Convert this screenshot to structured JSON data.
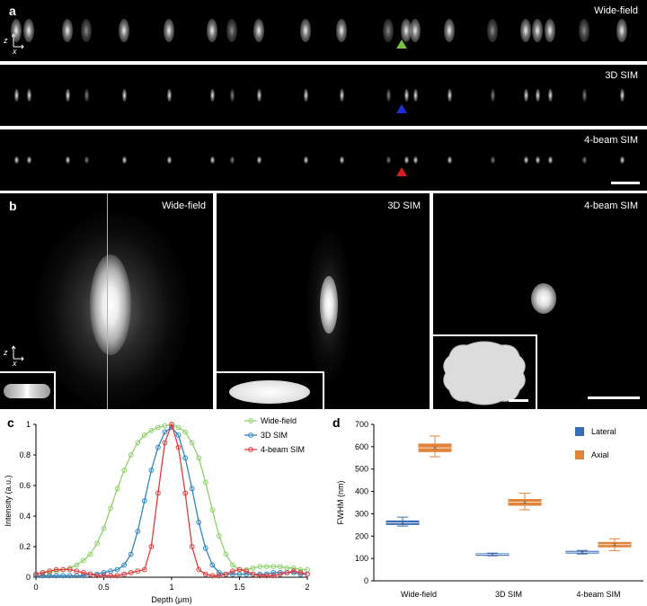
{
  "panel_a": {
    "letter": "a",
    "rows": [
      {
        "label": "Wide-field",
        "marker_color": "#7ac142"
      },
      {
        "label": "3D SIM",
        "marker_color": "#1f2ed1"
      },
      {
        "label": "4-beam SIM",
        "marker_color": "#d42020"
      }
    ],
    "axis_z": "z",
    "axis_x": "x"
  },
  "panel_b": {
    "letter": "b",
    "labels": [
      "Wide-field",
      "3D SIM",
      "4-beam SIM"
    ],
    "axis_z": "z",
    "axis_x": "x"
  },
  "panel_c": {
    "letter": "c",
    "chart_data": {
      "type": "line",
      "xlabel": "Depth (μm)",
      "ylabel": "Intensity (a.u.)",
      "xlim": [
        0,
        2
      ],
      "ylim": [
        0,
        1
      ],
      "xticks": [
        "0",
        "0.5",
        "1",
        "1.5",
        "2"
      ],
      "yticks": [
        "0",
        "0.2",
        "0.4",
        "0.6",
        "0.8",
        "1"
      ],
      "legend_position": "top-right",
      "series": [
        {
          "name": "Wide-field",
          "color": "#8fd16a",
          "x": [
            0,
            0.05,
            0.1,
            0.15,
            0.2,
            0.25,
            0.3,
            0.35,
            0.4,
            0.45,
            0.5,
            0.55,
            0.6,
            0.65,
            0.7,
            0.75,
            0.8,
            0.85,
            0.9,
            0.95,
            1.0,
            1.05,
            1.1,
            1.15,
            1.2,
            1.25,
            1.3,
            1.35,
            1.4,
            1.45,
            1.5,
            1.55,
            1.6,
            1.65,
            1.7,
            1.75,
            1.8,
            1.85,
            1.9,
            1.95,
            2.0
          ],
          "y": [
            0.02,
            0.03,
            0.03,
            0.04,
            0.05,
            0.06,
            0.08,
            0.11,
            0.15,
            0.22,
            0.32,
            0.45,
            0.58,
            0.7,
            0.8,
            0.88,
            0.93,
            0.96,
            0.98,
            0.99,
            1.0,
            0.98,
            0.95,
            0.88,
            0.78,
            0.62,
            0.44,
            0.27,
            0.15,
            0.08,
            0.05,
            0.05,
            0.06,
            0.07,
            0.07,
            0.07,
            0.07,
            0.06,
            0.06,
            0.05,
            0.05
          ]
        },
        {
          "name": "3D SIM",
          "color": "#2e86c1",
          "x": [
            0,
            0.05,
            0.1,
            0.15,
            0.2,
            0.25,
            0.3,
            0.35,
            0.4,
            0.45,
            0.5,
            0.55,
            0.6,
            0.65,
            0.7,
            0.75,
            0.8,
            0.85,
            0.9,
            0.95,
            1.0,
            1.05,
            1.1,
            1.15,
            1.2,
            1.25,
            1.3,
            1.35,
            1.4,
            1.45,
            1.5,
            1.55,
            1.6,
            1.65,
            1.7,
            1.75,
            1.8,
            1.85,
            1.9,
            1.95,
            2.0
          ],
          "y": [
            0.01,
            0.01,
            0.01,
            0.01,
            0.01,
            0.01,
            0.01,
            0.01,
            0.02,
            0.02,
            0.03,
            0.04,
            0.05,
            0.08,
            0.15,
            0.3,
            0.5,
            0.7,
            0.85,
            0.95,
            0.98,
            0.93,
            0.78,
            0.58,
            0.36,
            0.19,
            0.08,
            0.03,
            0.02,
            0.02,
            0.02,
            0.02,
            0.02,
            0.02,
            0.02,
            0.03,
            0.03,
            0.03,
            0.03,
            0.02,
            0.02
          ]
        },
        {
          "name": "4-beam SIM",
          "color": "#e03c3c",
          "x": [
            0,
            0.05,
            0.1,
            0.15,
            0.2,
            0.25,
            0.3,
            0.35,
            0.4,
            0.45,
            0.5,
            0.55,
            0.6,
            0.65,
            0.7,
            0.75,
            0.8,
            0.85,
            0.9,
            0.95,
            1.0,
            1.05,
            1.1,
            1.15,
            1.2,
            1.25,
            1.3,
            1.35,
            1.4,
            1.45,
            1.5,
            1.55,
            1.6,
            1.65,
            1.7,
            1.75,
            1.8,
            1.85,
            1.9,
            1.95,
            2.0
          ],
          "y": [
            0.02,
            0.03,
            0.04,
            0.05,
            0.05,
            0.05,
            0.04,
            0.03,
            0.02,
            0.01,
            0.01,
            0.01,
            0.01,
            0.02,
            0.03,
            0.04,
            0.05,
            0.2,
            0.55,
            0.88,
            1.0,
            0.85,
            0.55,
            0.2,
            0.05,
            0.02,
            0.01,
            0.01,
            0.02,
            0.04,
            0.05,
            0.04,
            0.02,
            0.01,
            0.01,
            0.01,
            0.02,
            0.03,
            0.04,
            0.03,
            0.02
          ]
        }
      ]
    }
  },
  "panel_d": {
    "letter": "d",
    "chart_data": {
      "type": "box",
      "ylabel": "FWHM (nm)",
      "ylim": [
        0,
        700
      ],
      "yticks": [
        "0",
        "100",
        "200",
        "300",
        "400",
        "500",
        "600",
        "700"
      ],
      "categories": [
        "Wide-field",
        "3D SIM",
        "4-beam SIM"
      ],
      "legend_position": "top-right",
      "series": [
        {
          "name": "Lateral",
          "color": "#3a6db5",
          "boxes": [
            {
              "min": 245,
              "q1": 252,
              "median": 260,
              "q3": 268,
              "max": 285
            },
            {
              "min": 112,
              "q1": 114,
              "median": 118,
              "q3": 121,
              "max": 124
            },
            {
              "min": 120,
              "q1": 124,
              "median": 128,
              "q3": 132,
              "max": 136
            }
          ]
        },
        {
          "name": "Axial",
          "color": "#e0853a",
          "boxes": [
            {
              "min": 555,
              "q1": 578,
              "median": 595,
              "q3": 612,
              "max": 648
            },
            {
              "min": 318,
              "q1": 338,
              "median": 352,
              "q3": 364,
              "max": 392
            },
            {
              "min": 135,
              "q1": 152,
              "median": 162,
              "q3": 172,
              "max": 188
            }
          ]
        }
      ]
    }
  }
}
